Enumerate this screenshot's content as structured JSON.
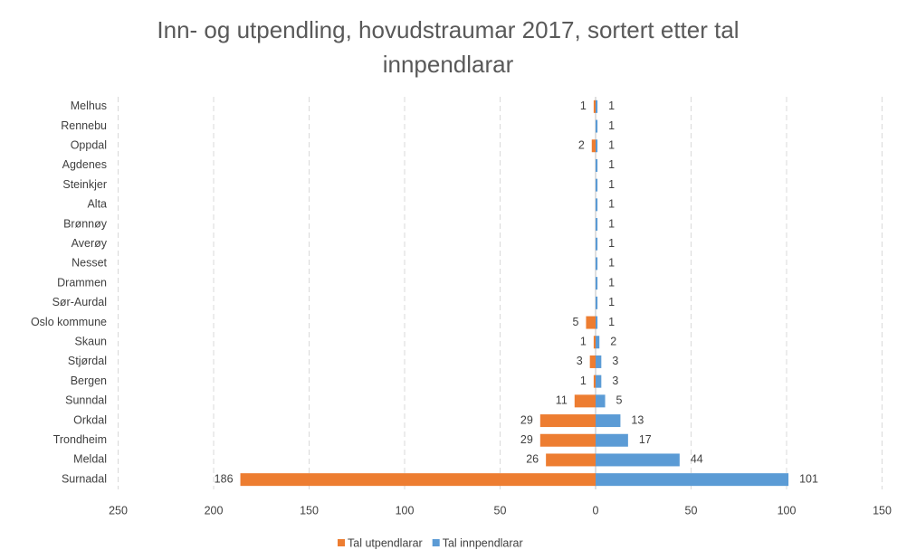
{
  "chart_data": {
    "type": "butterfly-bar",
    "title": "Inn- og utpendling, hovudstraumar 2017, sortert etter tal innpendlarar",
    "categories": [
      "Melhus",
      "Rennebu",
      "Oppdal",
      "Agdenes",
      "Steinkjer",
      "Alta",
      "Brønnøy",
      "Averøy",
      "Nesset",
      "Drammen",
      "Sør-Aurdal",
      "Oslo kommune",
      "Skaun",
      "Stjørdal",
      "Bergen",
      "Sunndal",
      "Orkdal",
      "Trondheim",
      "Meldal",
      "Surnadal"
    ],
    "series": [
      {
        "name": "Tal utpendlarar",
        "color": "#ed7d31",
        "values": [
          -1,
          null,
          -2,
          null,
          null,
          null,
          null,
          null,
          null,
          null,
          null,
          -5,
          -1,
          -3,
          -1,
          -11,
          -29,
          -29,
          -26,
          -186
        ],
        "value_labels": [
          "1",
          null,
          "2",
          null,
          null,
          null,
          null,
          null,
          null,
          null,
          null,
          "5",
          "1",
          "3",
          "1",
          "11",
          "29",
          "29",
          "26",
          "186"
        ]
      },
      {
        "name": "Tal innpendlarar",
        "color": "#5b9bd5",
        "values": [
          1,
          1,
          1,
          1,
          1,
          1,
          1,
          1,
          1,
          1,
          1,
          1,
          2,
          3,
          3,
          5,
          13,
          17,
          44,
          101
        ]
      }
    ],
    "xlim": [
      -250,
      150
    ],
    "xticks": [
      {
        "value": -250,
        "label": "250"
      },
      {
        "value": -200,
        "label": "200"
      },
      {
        "value": -150,
        "label": "150"
      },
      {
        "value": -100,
        "label": "100"
      },
      {
        "value": -50,
        "label": "50"
      },
      0,
      50,
      100,
      150
    ],
    "grid": true,
    "legend": "bottom"
  }
}
